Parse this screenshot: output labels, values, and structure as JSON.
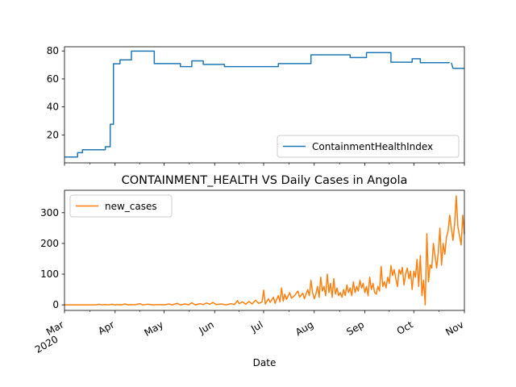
{
  "figure": {
    "title": "CONTAINMENT_HEALTH VS Daily Cases in Angola",
    "xlabel": "Date"
  },
  "chart_data": [
    {
      "type": "line",
      "title": "",
      "xlabel": "",
      "ylabel": "",
      "legend_position": "lower-right",
      "grid": false,
      "xlim": [
        "2020-03-01",
        "2020-11-01"
      ],
      "ylim": [
        0,
        83
      ],
      "yticks": [
        20,
        40,
        60,
        80
      ],
      "series": [
        {
          "name": "ContainmentHealthIndex",
          "color": "#1f77b4",
          "points": [
            [
              "2020-03-01",
              4.2
            ],
            [
              "2020-03-09",
              4.2
            ],
            [
              "2020-03-09",
              7.3
            ],
            [
              "2020-03-12",
              7.3
            ],
            [
              "2020-03-12",
              9.4
            ],
            [
              "2020-03-26",
              9.4
            ],
            [
              "2020-03-26",
              11.5
            ],
            [
              "2020-03-29",
              11.5
            ],
            [
              "2020-03-29",
              27.6
            ],
            [
              "2020-03-31",
              27.6
            ],
            [
              "2020-03-31",
              70.8
            ],
            [
              "2020-04-04",
              70.8
            ],
            [
              "2020-04-04",
              73.6
            ],
            [
              "2020-04-11",
              73.6
            ],
            [
              "2020-04-11",
              79.9
            ],
            [
              "2020-04-25",
              79.9
            ],
            [
              "2020-04-25",
              71.0
            ],
            [
              "2020-05-11",
              71.0
            ],
            [
              "2020-05-11",
              68.8
            ],
            [
              "2020-05-18",
              68.8
            ],
            [
              "2020-05-18",
              72.9
            ],
            [
              "2020-05-25",
              72.9
            ],
            [
              "2020-05-25",
              70.4
            ],
            [
              "2020-06-07",
              70.4
            ],
            [
              "2020-06-07",
              68.8
            ],
            [
              "2020-07-10",
              68.8
            ],
            [
              "2020-07-10",
              71.0
            ],
            [
              "2020-07-30",
              71.0
            ],
            [
              "2020-07-30",
              77.2
            ],
            [
              "2020-08-23",
              77.2
            ],
            [
              "2020-08-23",
              75.3
            ],
            [
              "2020-09-02",
              75.3
            ],
            [
              "2020-09-02",
              78.8
            ],
            [
              "2020-09-17",
              78.8
            ],
            [
              "2020-09-17",
              72.0
            ],
            [
              "2020-09-30",
              72.0
            ],
            [
              "2020-09-30",
              74.4
            ],
            [
              "2020-10-05",
              74.4
            ],
            [
              "2020-10-05",
              71.6
            ],
            [
              "2020-10-23",
              71.6
            ],
            null,
            [
              "2020-10-24",
              71.6
            ],
            [
              "2020-10-25",
              67.6
            ],
            [
              "2020-11-01",
              67.6
            ]
          ]
        }
      ]
    },
    {
      "type": "line",
      "title": "",
      "xlabel": "",
      "ylabel": "",
      "legend_position": "upper-left",
      "grid": false,
      "xlim": [
        "2020-03-01",
        "2020-11-01"
      ],
      "ylim": [
        -18,
        373
      ],
      "yticks": [
        0,
        100,
        200,
        300
      ],
      "series": [
        {
          "name": "new_cases",
          "color": "#ff7f0e",
          "points": [
            [
              "2020-03-01",
              0
            ],
            [
              "2020-03-20",
              0
            ],
            [
              "2020-03-22",
              2
            ],
            [
              "2020-03-24",
              0
            ],
            [
              "2020-03-26",
              1
            ],
            [
              "2020-03-28",
              0
            ],
            [
              "2020-03-30",
              2
            ],
            [
              "2020-04-01",
              0
            ],
            [
              "2020-04-03",
              1
            ],
            [
              "2020-04-05",
              0
            ],
            [
              "2020-04-07",
              3
            ],
            [
              "2020-04-09",
              0
            ],
            [
              "2020-04-11",
              1
            ],
            [
              "2020-04-13",
              0
            ],
            [
              "2020-04-16",
              4
            ],
            [
              "2020-04-18",
              0
            ],
            [
              "2020-04-21",
              2
            ],
            [
              "2020-04-24",
              0
            ],
            [
              "2020-04-28",
              1
            ],
            [
              "2020-05-01",
              0
            ],
            [
              "2020-05-04",
              3
            ],
            [
              "2020-05-06",
              0
            ],
            [
              "2020-05-09",
              5
            ],
            [
              "2020-05-11",
              0
            ],
            [
              "2020-05-14",
              3
            ],
            [
              "2020-05-16",
              0
            ],
            [
              "2020-05-18",
              7
            ],
            [
              "2020-05-20",
              0
            ],
            [
              "2020-05-23",
              4
            ],
            [
              "2020-05-25",
              1
            ],
            [
              "2020-05-27",
              6
            ],
            [
              "2020-05-29",
              2
            ],
            [
              "2020-05-31",
              8
            ],
            [
              "2020-06-02",
              1
            ],
            [
              "2020-06-05",
              3
            ],
            [
              "2020-06-08",
              0
            ],
            [
              "2020-06-11",
              4
            ],
            [
              "2020-06-13",
              1
            ],
            [
              "2020-06-15",
              14
            ],
            [
              "2020-06-16",
              4
            ],
            [
              "2020-06-18",
              10
            ],
            [
              "2020-06-20",
              2
            ],
            [
              "2020-06-22",
              11
            ],
            [
              "2020-06-24",
              3
            ],
            [
              "2020-06-26",
              15
            ],
            [
              "2020-06-28",
              5
            ],
            [
              "2020-06-30",
              9
            ],
            [
              "2020-07-01",
              48
            ],
            [
              "2020-07-02",
              3
            ],
            [
              "2020-07-04",
              20
            ],
            [
              "2020-07-05",
              8
            ],
            [
              "2020-07-07",
              25
            ],
            [
              "2020-07-08",
              5
            ],
            [
              "2020-07-10",
              30
            ],
            [
              "2020-07-11",
              10
            ],
            [
              "2020-07-12",
              55
            ],
            [
              "2020-07-13",
              12
            ],
            [
              "2020-07-14",
              35
            ],
            [
              "2020-07-15",
              18
            ],
            [
              "2020-07-17",
              40
            ],
            [
              "2020-07-18",
              22
            ],
            [
              "2020-07-20",
              30
            ],
            [
              "2020-07-22",
              45
            ],
            [
              "2020-07-23",
              25
            ],
            [
              "2020-07-25",
              38
            ],
            [
              "2020-07-26",
              20
            ],
            [
              "2020-07-28",
              50
            ],
            [
              "2020-07-29",
              30
            ],
            [
              "2020-07-30",
              80
            ],
            [
              "2020-07-31",
              40
            ],
            [
              "2020-08-01",
              20
            ],
            [
              "2020-08-02",
              35
            ],
            [
              "2020-08-03",
              60
            ],
            [
              "2020-08-04",
              25
            ],
            [
              "2020-08-05",
              90
            ],
            [
              "2020-08-06",
              45
            ],
            [
              "2020-08-07",
              60
            ],
            [
              "2020-08-08",
              30
            ],
            [
              "2020-08-09",
              100
            ],
            [
              "2020-08-10",
              40
            ],
            [
              "2020-08-11",
              70
            ],
            [
              "2020-08-12",
              25
            ],
            [
              "2020-08-13",
              85
            ],
            [
              "2020-08-14",
              35
            ],
            [
              "2020-08-15",
              55
            ],
            [
              "2020-08-16",
              30
            ],
            [
              "2020-08-17",
              40
            ],
            [
              "2020-08-18",
              25
            ],
            [
              "2020-08-19",
              50
            ],
            [
              "2020-08-20",
              30
            ],
            [
              "2020-08-21",
              65
            ],
            [
              "2020-08-22",
              40
            ],
            [
              "2020-08-23",
              55
            ],
            [
              "2020-08-24",
              30
            ],
            [
              "2020-08-25",
              75
            ],
            [
              "2020-08-26",
              40
            ],
            [
              "2020-08-27",
              60
            ],
            [
              "2020-08-28",
              45
            ],
            [
              "2020-08-29",
              80
            ],
            [
              "2020-08-30",
              55
            ],
            [
              "2020-08-31",
              70
            ],
            [
              "2020-09-01",
              40
            ],
            [
              "2020-09-02",
              60
            ],
            [
              "2020-09-03",
              30
            ],
            [
              "2020-09-04",
              90
            ],
            [
              "2020-09-05",
              50
            ],
            [
              "2020-09-06",
              70
            ],
            [
              "2020-09-07",
              40
            ],
            [
              "2020-09-08",
              35
            ],
            [
              "2020-09-09",
              60
            ],
            [
              "2020-09-10",
              45
            ],
            [
              "2020-09-11",
              125
            ],
            [
              "2020-09-12",
              60
            ],
            [
              "2020-09-13",
              75
            ],
            [
              "2020-09-14",
              55
            ],
            [
              "2020-09-15",
              90
            ],
            [
              "2020-09-16",
              70
            ],
            [
              "2020-09-17",
              128
            ],
            [
              "2020-09-18",
              95
            ],
            [
              "2020-09-19",
              115
            ],
            [
              "2020-09-20",
              85
            ],
            [
              "2020-09-21",
              60
            ],
            [
              "2020-09-22",
              115
            ],
            [
              "2020-09-23",
              100
            ],
            [
              "2020-09-24",
              122
            ],
            [
              "2020-09-25",
              65
            ],
            [
              "2020-09-26",
              100
            ],
            [
              "2020-09-27",
              120
            ],
            [
              "2020-09-28",
              85
            ],
            [
              "2020-09-29",
              110
            ],
            [
              "2020-09-30",
              50
            ],
            [
              "2020-10-01",
              110
            ],
            [
              "2020-10-02",
              90
            ],
            [
              "2020-10-03",
              148
            ],
            [
              "2020-10-04",
              60
            ],
            [
              "2020-10-05",
              160
            ],
            [
              "2020-10-06",
              30
            ],
            [
              "2020-10-07",
              80
            ],
            [
              "2020-10-08",
              0
            ],
            [
              "2020-10-09",
              232
            ],
            [
              "2020-10-10",
              75
            ],
            [
              "2020-10-11",
              130
            ],
            [
              "2020-10-12",
              120
            ],
            [
              "2020-10-13",
              200
            ],
            [
              "2020-10-14",
              160
            ],
            [
              "2020-10-15",
              120
            ],
            [
              "2020-10-16",
              170
            ],
            [
              "2020-10-17",
              250
            ],
            [
              "2020-10-18",
              130
            ],
            [
              "2020-10-19",
              200
            ],
            [
              "2020-10-20",
              165
            ],
            [
              "2020-10-21",
              220
            ],
            [
              "2020-10-22",
              240
            ],
            [
              "2020-10-23",
              292
            ],
            [
              "2020-10-24",
              250
            ],
            [
              "2020-10-25",
              210
            ],
            [
              "2020-10-26",
              262
            ],
            [
              "2020-10-27",
              355
            ],
            [
              "2020-10-28",
              255
            ],
            [
              "2020-10-29",
              225
            ],
            [
              "2020-10-30",
              195
            ],
            [
              "2020-10-31",
              292
            ],
            [
              "2020-11-01",
              230
            ]
          ]
        }
      ]
    }
  ],
  "xaxis": {
    "ticks": [
      {
        "date": "2020-03-01",
        "label": "Mar",
        "year": "2020"
      },
      {
        "date": "2020-04-01",
        "label": "Apr"
      },
      {
        "date": "2020-05-01",
        "label": "May"
      },
      {
        "date": "2020-06-01",
        "label": "Jun"
      },
      {
        "date": "2020-07-01",
        "label": "Jul"
      },
      {
        "date": "2020-08-01",
        "label": "Aug"
      },
      {
        "date": "2020-09-01",
        "label": "Sep"
      },
      {
        "date": "2020-10-01",
        "label": "Oct"
      },
      {
        "date": "2020-11-01",
        "label": "Nov"
      }
    ]
  }
}
